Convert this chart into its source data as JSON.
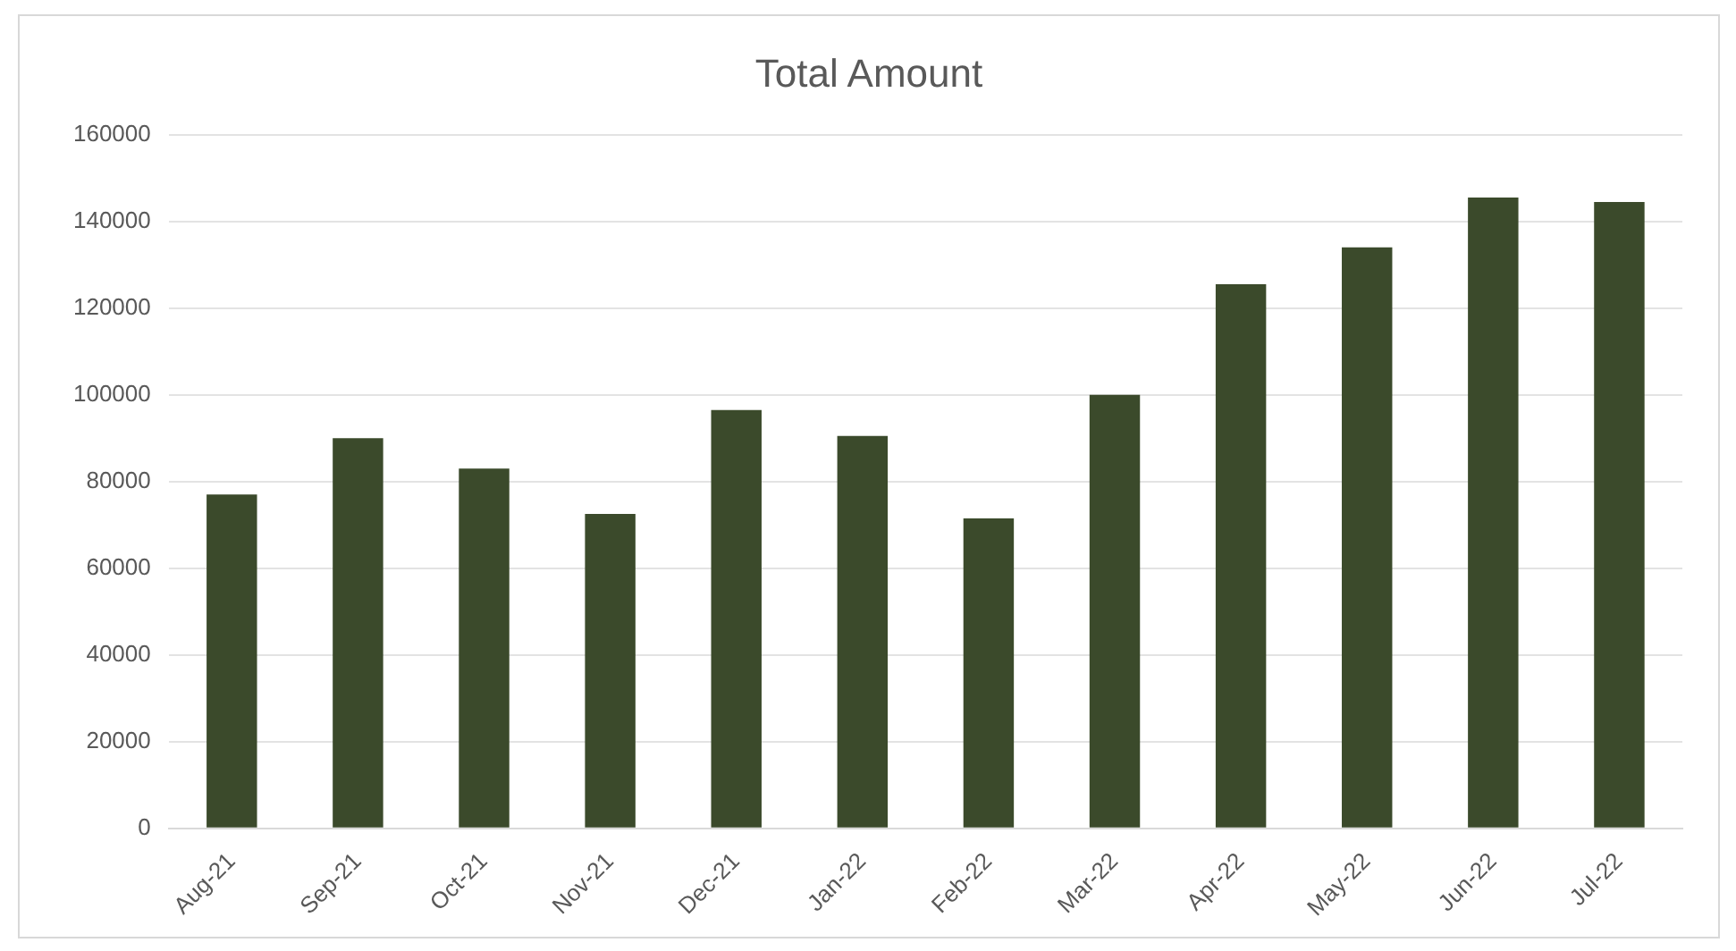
{
  "chart_data": {
    "type": "bar",
    "title": "Total Amount",
    "categories": [
      "Aug-21",
      "Sep-21",
      "Oct-21",
      "Nov-21",
      "Dec-21",
      "Jan-22",
      "Feb-22",
      "Mar-22",
      "Apr-22",
      "May-22",
      "Jun-22",
      "Jul-22"
    ],
    "values": [
      77000,
      90000,
      83000,
      72500,
      96500,
      90500,
      71500,
      100000,
      125500,
      134000,
      145500,
      144500
    ],
    "color": "#3b4a2b",
    "ylim": [
      0,
      160000
    ],
    "yticks": [
      0,
      20000,
      40000,
      60000,
      80000,
      100000,
      120000,
      140000,
      160000
    ],
    "grid": "y"
  }
}
